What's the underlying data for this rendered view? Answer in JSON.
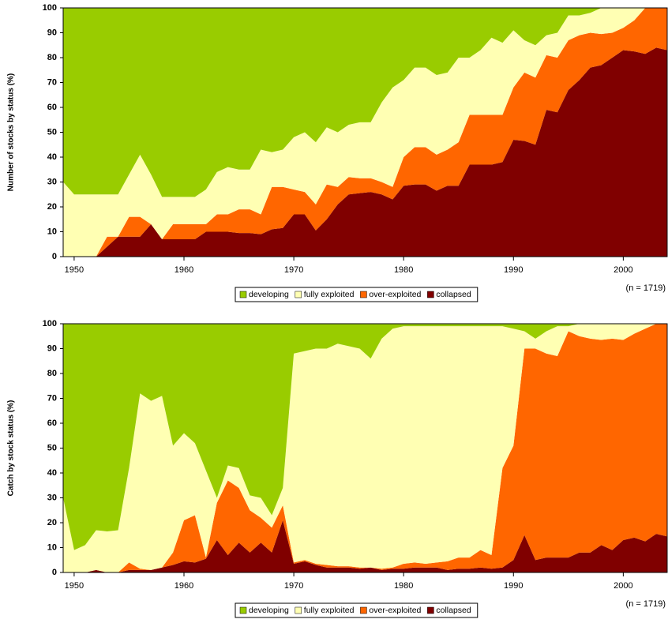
{
  "chart_data": [
    {
      "type": "stacked-area",
      "ylabel": "Number of stocks by status (%)",
      "note": "(n = 1719)",
      "xlim": [
        1949,
        2004
      ],
      "xticks": [
        1950,
        1960,
        1970,
        1980,
        1990,
        2000
      ],
      "ylim": [
        0,
        100
      ],
      "yticks": [
        0,
        10,
        20,
        30,
        40,
        50,
        60,
        70,
        80,
        90,
        100
      ],
      "x": [
        1949,
        1950,
        1951,
        1952,
        1953,
        1954,
        1955,
        1956,
        1957,
        1958,
        1959,
        1960,
        1961,
        1962,
        1963,
        1964,
        1965,
        1966,
        1967,
        1968,
        1969,
        1970,
        1971,
        1972,
        1973,
        1974,
        1975,
        1976,
        1977,
        1978,
        1979,
        1980,
        1981,
        1982,
        1983,
        1984,
        1985,
        1986,
        1987,
        1988,
        1989,
        1990,
        1991,
        1992,
        1993,
        1994,
        1995,
        1996,
        1997,
        1998,
        1999,
        2000,
        2001,
        2002,
        2003,
        2004
      ],
      "series": [
        {
          "name": "collapsed",
          "color": "#800000",
          "values": [
            0,
            0,
            0,
            0,
            4,
            8,
            8,
            8,
            13,
            7,
            7,
            7,
            7,
            10,
            10,
            10,
            9.5,
            9.5,
            9,
            11,
            11.5,
            17,
            17,
            10.5,
            15,
            21,
            25,
            25.5,
            26,
            25,
            23,
            28.5,
            29,
            29,
            26.5,
            28.5,
            28.5,
            37,
            37,
            37,
            38,
            47,
            46.5,
            45,
            59,
            58,
            67,
            71,
            76,
            77,
            80,
            83,
            82.5,
            81.5,
            84,
            83
          ]
        },
        {
          "name": "over-exploited",
          "color": "#ff6600",
          "values": [
            0,
            0,
            0,
            0,
            4,
            0,
            8,
            8,
            0,
            0,
            6,
            6,
            6,
            3,
            7,
            7,
            9.5,
            9.5,
            8,
            17,
            16.5,
            10,
            9,
            10.5,
            14,
            7,
            7,
            6,
            5.5,
            5,
            5,
            11.5,
            15,
            15,
            14.5,
            14.5,
            17.5,
            20,
            20,
            20,
            19,
            21,
            27.5,
            27,
            22,
            22,
            20,
            18,
            14,
            12.5,
            10,
            9,
            12.5,
            18.5,
            16,
            17
          ]
        },
        {
          "name": "fully exploited",
          "color": "#ffffb3",
          "values": [
            30,
            25,
            25,
            25,
            17,
            17,
            17,
            25,
            20,
            17,
            11,
            11,
            11,
            14,
            17,
            19,
            16,
            16,
            26,
            14,
            15,
            21,
            24,
            25,
            23,
            22,
            21,
            22.5,
            22.5,
            32,
            40,
            31,
            32,
            32,
            32,
            31,
            34,
            23,
            26,
            31,
            29,
            23,
            13,
            13,
            8,
            10,
            10,
            8,
            8,
            10.5,
            10,
            8,
            5,
            0,
            0,
            0
          ]
        },
        {
          "name": "developing",
          "color": "#99cc00",
          "values": [
            70,
            75,
            75,
            75,
            75,
            75,
            67,
            59,
            67,
            76,
            76,
            76,
            76,
            73,
            66,
            64,
            65,
            65,
            57,
            58,
            57,
            52,
            50,
            54,
            48,
            50,
            47,
            46,
            46,
            38,
            32,
            29,
            24,
            24,
            27,
            26,
            20,
            20,
            17,
            12,
            14,
            9,
            13,
            15,
            11,
            10,
            3,
            3,
            2,
            0,
            0,
            0,
            0,
            0,
            0,
            0
          ]
        }
      ]
    },
    {
      "type": "stacked-area",
      "ylabel": "Catch by stock status (%)",
      "note": "(n = 1719)",
      "xlim": [
        1949,
        2004
      ],
      "xticks": [
        1950,
        1960,
        1970,
        1980,
        1990,
        2000
      ],
      "ylim": [
        0,
        100
      ],
      "yticks": [
        0,
        10,
        20,
        30,
        40,
        50,
        60,
        70,
        80,
        90,
        100
      ],
      "x": [
        1949,
        1950,
        1951,
        1952,
        1953,
        1954,
        1955,
        1956,
        1957,
        1958,
        1959,
        1960,
        1961,
        1962,
        1963,
        1964,
        1965,
        1966,
        1967,
        1968,
        1969,
        1970,
        1971,
        1972,
        1973,
        1974,
        1975,
        1976,
        1977,
        1978,
        1979,
        1980,
        1981,
        1982,
        1983,
        1984,
        1985,
        1986,
        1987,
        1988,
        1989,
        1990,
        1991,
        1992,
        1993,
        1994,
        1995,
        1996,
        1997,
        1998,
        1999,
        2000,
        2001,
        2002,
        2003,
        2004
      ],
      "series": [
        {
          "name": "collapsed",
          "color": "#800000",
          "values": [
            0,
            0,
            0,
            1,
            0,
            0,
            1,
            1,
            1,
            2,
            3,
            4.5,
            4,
            5.5,
            13,
            7,
            12,
            8,
            12,
            8,
            21,
            3.5,
            4.5,
            3,
            2,
            2,
            2,
            1.5,
            2,
            1,
            1.5,
            1.5,
            2,
            2,
            2,
            1,
            1.5,
            1.5,
            2,
            1.5,
            2,
            5,
            15,
            5,
            6,
            6,
            6,
            8,
            8,
            11,
            9,
            13,
            14,
            12.5,
            15.5,
            14.5
          ]
        },
        {
          "name": "over-exploited",
          "color": "#ff6600",
          "values": [
            0,
            0,
            0,
            0,
            0,
            0,
            3,
            0.5,
            0,
            0,
            5,
            16.5,
            19,
            0.5,
            15,
            30,
            22,
            17,
            10,
            10,
            6,
            0.5,
            0.5,
            0.5,
            1,
            0.5,
            0.5,
            0.5,
            0,
            0.5,
            0.5,
            2,
            2,
            1.5,
            2,
            3.5,
            4.5,
            4.5,
            7,
            5.5,
            40,
            46,
            75,
            85,
            82,
            81,
            91,
            87,
            86,
            82.5,
            85,
            80.5,
            82,
            85.5,
            84.5,
            85.5
          ]
        },
        {
          "name": "fully exploited",
          "color": "#ffffb3",
          "values": [
            30,
            9,
            11,
            16,
            16.5,
            17,
            38,
            70.5,
            68,
            69,
            43,
            35,
            29,
            35,
            2,
            6,
            8,
            6,
            8,
            5,
            7,
            84,
            84,
            86.5,
            87,
            89.5,
            88.5,
            88,
            84,
            92.5,
            96,
            95.5,
            95,
            95.5,
            95,
            94.5,
            93,
            93,
            90,
            92,
            57,
            47,
            7,
            4,
            9,
            12,
            2,
            5,
            6,
            6.5,
            6,
            6.5,
            4,
            2,
            0,
            0
          ]
        },
        {
          "name": "developing",
          "color": "#99cc00",
          "values": [
            70,
            91,
            89,
            83,
            83.5,
            83,
            58,
            28,
            31,
            29,
            49,
            44,
            48,
            59,
            70,
            57,
            58,
            69,
            70,
            77,
            66,
            12,
            11,
            10,
            10,
            8,
            9,
            10,
            14,
            6,
            2,
            1,
            1,
            1,
            1,
            1,
            1,
            1,
            1,
            1,
            1,
            2,
            3,
            6,
            3,
            1,
            1,
            0,
            0,
            0,
            0,
            0,
            0,
            0,
            0,
            0
          ]
        }
      ]
    }
  ]
}
